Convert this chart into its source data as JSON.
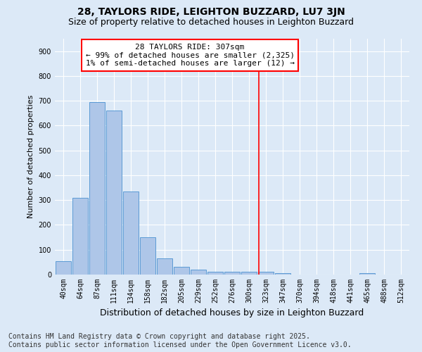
{
  "title": "28, TAYLORS RIDE, LEIGHTON BUZZARD, LU7 3JN",
  "subtitle": "Size of property relative to detached houses in Leighton Buzzard",
  "xlabel": "Distribution of detached houses by size in Leighton Buzzard",
  "ylabel": "Number of detached properties",
  "categories": [
    "40sqm",
    "64sqm",
    "87sqm",
    "111sqm",
    "134sqm",
    "158sqm",
    "182sqm",
    "205sqm",
    "229sqm",
    "252sqm",
    "276sqm",
    "300sqm",
    "323sqm",
    "347sqm",
    "370sqm",
    "394sqm",
    "418sqm",
    "441sqm",
    "465sqm",
    "488sqm",
    "512sqm"
  ],
  "values": [
    55,
    310,
    695,
    660,
    335,
    150,
    65,
    32,
    20,
    10,
    10,
    10,
    10,
    5,
    0,
    0,
    0,
    0,
    5,
    0,
    0
  ],
  "bar_color": "#aec6e8",
  "bar_edge_color": "#5b9bd5",
  "ylim": [
    0,
    950
  ],
  "yticks": [
    0,
    100,
    200,
    300,
    400,
    500,
    600,
    700,
    800,
    900
  ],
  "vline_x": 11.6,
  "vline_color": "red",
  "annotation_text": "28 TAYLORS RIDE: 307sqm\n← 99% of detached houses are smaller (2,325)\n1% of semi-detached houses are larger (12) →",
  "annotation_box_color": "white",
  "annotation_box_edge_color": "red",
  "footer_text": "Contains HM Land Registry data © Crown copyright and database right 2025.\nContains public sector information licensed under the Open Government Licence v3.0.",
  "background_color": "#dce9f7",
  "plot_bg_color": "#dce9f7",
  "title_fontsize": 10,
  "subtitle_fontsize": 9,
  "tick_fontsize": 7,
  "ylabel_fontsize": 8,
  "xlabel_fontsize": 9,
  "footer_fontsize": 7,
  "annotation_fontsize": 8
}
